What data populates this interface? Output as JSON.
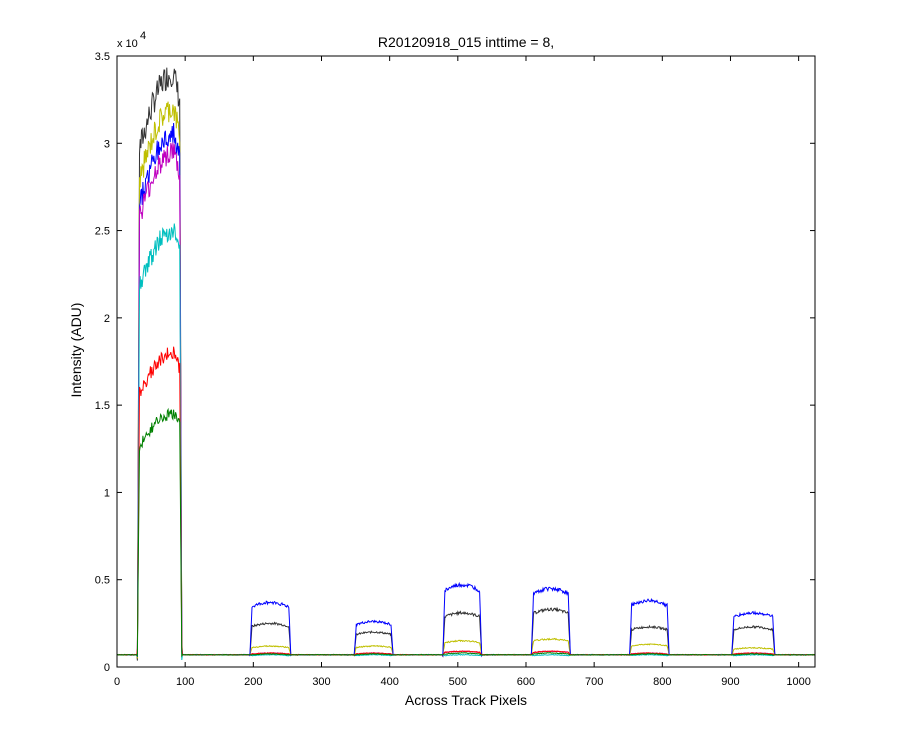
{
  "chart_data": {
    "type": "line",
    "title": "R20120918_015 inttime = 8,",
    "xlabel": "Across Track Pixels",
    "ylabel": "Intensity (ADU)",
    "y_multiplier_base": "x 10",
    "y_multiplier_exponent": "4",
    "xlim": [
      0,
      1024
    ],
    "ylim": [
      0,
      35000
    ],
    "grid": false,
    "legend": "none",
    "x_ticks": [
      0,
      100,
      200,
      300,
      400,
      500,
      600,
      700,
      800,
      900,
      1000
    ],
    "x_tick_labels": [
      "0",
      "100",
      "200",
      "300",
      "400",
      "500",
      "600",
      "700",
      "800",
      "900",
      "1000"
    ],
    "y_ticks": [
      0,
      5000,
      10000,
      15000,
      20000,
      25000,
      30000,
      35000
    ],
    "y_tick_labels": [
      "0",
      "0.5",
      "1",
      "1.5",
      "2",
      "2.5",
      "3",
      "3.5"
    ],
    "baseline": 700,
    "bands": [
      {
        "x_start": 30,
        "x_end": 95,
        "rising_slope": true
      },
      {
        "x_start": 195,
        "x_end": 255,
        "rising_slope": false
      },
      {
        "x_start": 348,
        "x_end": 405,
        "rising_slope": false
      },
      {
        "x_start": 478,
        "x_end": 535,
        "rising_slope": false
      },
      {
        "x_start": 608,
        "x_end": 665,
        "rising_slope": false
      },
      {
        "x_start": 752,
        "x_end": 810,
        "rising_slope": false
      },
      {
        "x_start": 902,
        "x_end": 965,
        "rising_slope": false
      }
    ],
    "series": [
      {
        "color": "#333333",
        "plateau_levels": [
          34000,
          2500,
          2000,
          3100,
          3300,
          2300,
          2300
        ]
      },
      {
        "color": "#bfbf00",
        "plateau_levels": [
          32000,
          1200,
          1200,
          1500,
          1600,
          1300,
          1100
        ]
      },
      {
        "color": "#0000ff",
        "plateau_levels": [
          30500,
          3700,
          2600,
          4700,
          4500,
          3800,
          3100
        ]
      },
      {
        "color": "#bf00bf",
        "plateau_levels": [
          29500,
          800,
          800,
          900,
          900,
          800,
          800
        ]
      },
      {
        "color": "#00bfbf",
        "plateau_levels": [
          25000,
          700,
          700,
          700,
          700,
          700,
          700
        ]
      },
      {
        "color": "#ff0000",
        "plateau_levels": [
          18000,
          800,
          800,
          900,
          900,
          800,
          800
        ]
      },
      {
        "color": "#008000",
        "plateau_levels": [
          14500,
          750,
          750,
          800,
          800,
          750,
          750
        ]
      }
    ]
  }
}
